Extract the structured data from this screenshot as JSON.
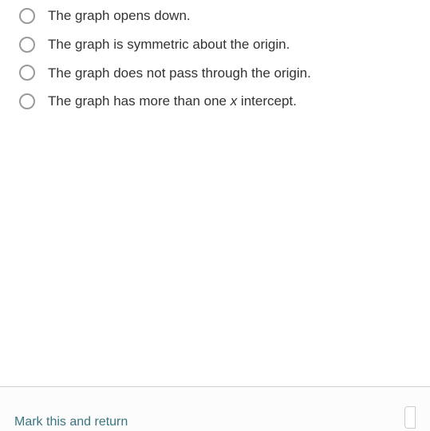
{
  "options": [
    {
      "label": "The graph opens down."
    },
    {
      "label": "The graph is symmetric about the origin."
    },
    {
      "label": "The graph does not pass through the origin."
    },
    {
      "label_pre": "The graph has more than one ",
      "label_italic": "x",
      "label_post": " intercept."
    }
  ],
  "footer": {
    "link_text": "Mark this and return"
  },
  "colors": {
    "radio_border": "#9a9a9a",
    "text": "#333333",
    "footer_border": "#d0d0d0",
    "footer_link": "#3a7580",
    "background": "#ffffff"
  },
  "typography": {
    "option_fontsize": 17,
    "footer_fontsize": 16
  }
}
